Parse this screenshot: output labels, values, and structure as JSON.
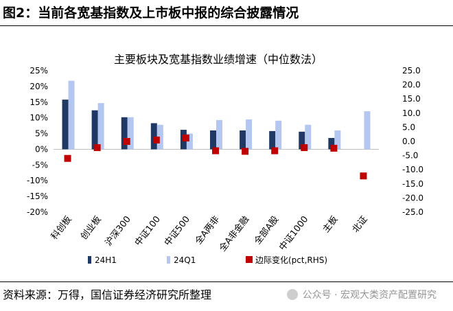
{
  "figure": {
    "title": "图2：当前各宽基指数及上市板中报的综合披露情况",
    "source": "资料来源：万得，国信证券经济研究所整理",
    "watermark": "公众号 · 宏观大类资产配置研究"
  },
  "chart_data": {
    "type": "bar",
    "title": "主要板块及宽基指数业绩增速（中位数法）",
    "categories": [
      "科创板",
      "创业板",
      "沪深300",
      "中证100",
      "中证500",
      "全A两非",
      "全A非金融",
      "全部A股",
      "中证1000",
      "主板",
      "北证"
    ],
    "series": [
      {
        "name": "24H1",
        "type": "bar",
        "axis": "left",
        "color": "#1f3864",
        "values": [
          15.8,
          12.4,
          10.2,
          8.3,
          6.2,
          6.0,
          6.0,
          5.8,
          5.6,
          3.6,
          null
        ]
      },
      {
        "name": "24Q1",
        "type": "bar",
        "axis": "left",
        "color": "#b4c7f0",
        "values": [
          21.8,
          14.7,
          10.2,
          7.8,
          5.0,
          9.3,
          9.5,
          9.1,
          7.8,
          6.0,
          12.1
        ]
      },
      {
        "name": "边际变化(pct,RHS)",
        "type": "scatter",
        "axis": "right",
        "color": "#c00000",
        "values": [
          -6.0,
          -2.2,
          0.0,
          0.5,
          1.2,
          -3.3,
          -3.5,
          -3.3,
          -2.2,
          -2.4,
          -12.2
        ]
      }
    ],
    "left_axis": {
      "min": -20,
      "max": 25,
      "ticks": [
        "25%",
        "20%",
        "15%",
        "10%",
        "5%",
        "0%",
        "-5%",
        "-10%",
        "-15%",
        "-20%"
      ]
    },
    "right_axis": {
      "min": -25,
      "max": 25,
      "ticks": [
        "25.0",
        "20.0",
        "15.0",
        "10.0",
        "5.0",
        "0.0",
        "-5.0",
        "-10.0",
        "-15.0",
        "-20.0",
        "-25.0"
      ]
    },
    "grid": false,
    "legend_position": "bottom"
  }
}
